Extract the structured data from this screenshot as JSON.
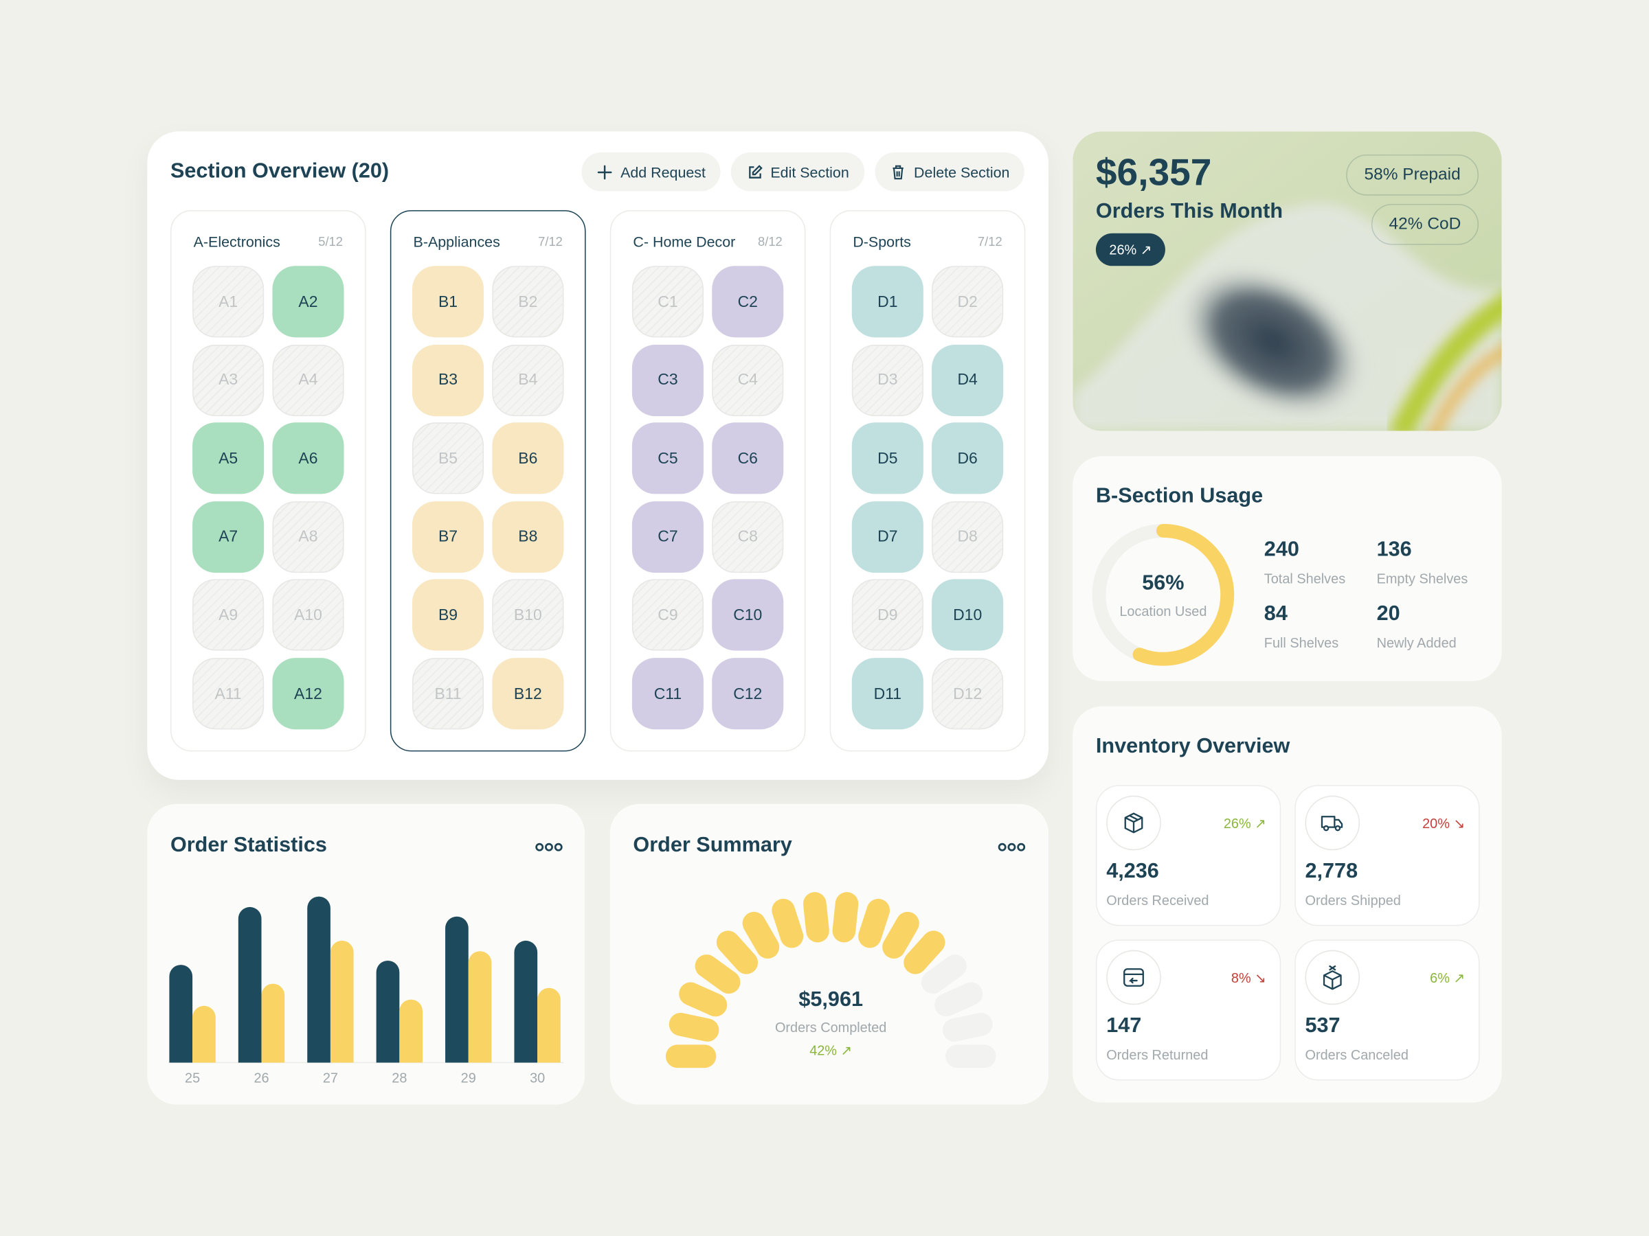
{
  "section_overview": {
    "title": "Section Overview (20)",
    "actions": [
      "Add Request",
      "Edit Section",
      "Delete Section"
    ],
    "selected_index": 1,
    "sections": [
      {
        "name": "A-Electronics",
        "count": "5/12",
        "color": "#a9dfbe",
        "slots": [
          {
            "label": "A1",
            "filled": false
          },
          {
            "label": "A2",
            "filled": true
          },
          {
            "label": "A3",
            "filled": false
          },
          {
            "label": "A4",
            "filled": false
          },
          {
            "label": "A5",
            "filled": true
          },
          {
            "label": "A6",
            "filled": true
          },
          {
            "label": "A7",
            "filled": true
          },
          {
            "label": "A8",
            "filled": false
          },
          {
            "label": "A9",
            "filled": false
          },
          {
            "label": "A10",
            "filled": false
          },
          {
            "label": "A11",
            "filled": false
          },
          {
            "label": "A12",
            "filled": true
          }
        ]
      },
      {
        "name": "B-Appliances",
        "count": "7/12",
        "color": "#f8e7c1",
        "slots": [
          {
            "label": "B1",
            "filled": true
          },
          {
            "label": "B2",
            "filled": false
          },
          {
            "label": "B3",
            "filled": true
          },
          {
            "label": "B4",
            "filled": false
          },
          {
            "label": "B5",
            "filled": false
          },
          {
            "label": "B6",
            "filled": true
          },
          {
            "label": "B7",
            "filled": true
          },
          {
            "label": "B8",
            "filled": true
          },
          {
            "label": "B9",
            "filled": true
          },
          {
            "label": "B10",
            "filled": false
          },
          {
            "label": "B11",
            "filled": false
          },
          {
            "label": "B12",
            "filled": true
          }
        ]
      },
      {
        "name": "C- Home Decor",
        "count": "8/12",
        "color": "#d2cde4",
        "slots": [
          {
            "label": "C1",
            "filled": false
          },
          {
            "label": "C2",
            "filled": true
          },
          {
            "label": "C3",
            "filled": true
          },
          {
            "label": "C4",
            "filled": false
          },
          {
            "label": "C5",
            "filled": true
          },
          {
            "label": "C6",
            "filled": true
          },
          {
            "label": "C7",
            "filled": true
          },
          {
            "label": "C8",
            "filled": false
          },
          {
            "label": "C9",
            "filled": false
          },
          {
            "label": "C10",
            "filled": true
          },
          {
            "label": "C11",
            "filled": true
          },
          {
            "label": "C12",
            "filled": true
          }
        ]
      },
      {
        "name": "D-Sports",
        "count": "7/12",
        "color": "#bfe0df",
        "slots": [
          {
            "label": "D1",
            "filled": true
          },
          {
            "label": "D2",
            "filled": false
          },
          {
            "label": "D3",
            "filled": false
          },
          {
            "label": "D4",
            "filled": true
          },
          {
            "label": "D5",
            "filled": true
          },
          {
            "label": "D6",
            "filled": true
          },
          {
            "label": "D7",
            "filled": true
          },
          {
            "label": "D8",
            "filled": false
          },
          {
            "label": "D9",
            "filled": false
          },
          {
            "label": "D10",
            "filled": true
          },
          {
            "label": "D11",
            "filled": true
          },
          {
            "label": "D12",
            "filled": false
          }
        ]
      }
    ]
  },
  "orders_month": {
    "amount": "$6,357",
    "label": "Orders This Month",
    "change": "26% ↗",
    "prepaid": "58% Prepaid",
    "cod": "42% CoD"
  },
  "section_usage": {
    "title": "B-Section Usage",
    "donut": {
      "type": "donut",
      "value": 56,
      "value_label": "56%",
      "caption": "Location Used",
      "color": "#f9d465",
      "track_color": "#f1f1ee"
    },
    "stats": [
      {
        "value": 240,
        "label": "Total Shelves"
      },
      {
        "value": 136,
        "label": "Empty Shelves"
      },
      {
        "value": 84,
        "label": "Full Shelves"
      },
      {
        "value": 20,
        "label": "Newly Added"
      }
    ]
  },
  "inventory_overview": {
    "title": "Inventory Overview",
    "items": [
      {
        "value": "4,236",
        "label": "Orders Received",
        "change": "26% ↗",
        "trend": "up",
        "icon": "box"
      },
      {
        "value": "2,778",
        "label": "Orders Shipped",
        "change": "20% ↘",
        "trend": "down",
        "icon": "truck"
      },
      {
        "value": "147",
        "label": "Orders Returned",
        "change": "8% ↘",
        "trend": "down",
        "icon": "return"
      },
      {
        "value": "537",
        "label": "Orders Canceled",
        "change": "6% ↗",
        "trend": "up",
        "icon": "cancel"
      }
    ]
  },
  "order_statistics": {
    "title": "Order Statistics",
    "chart": {
      "type": "bar",
      "categories": [
        "25",
        "26",
        "27",
        "28",
        "29",
        "30"
      ],
      "series": [
        {
          "color": "#1d4a5c",
          "values": [
            93,
            148,
            158,
            97,
            139,
            116
          ]
        },
        {
          "color": "#f9d465",
          "values": [
            54,
            75,
            116,
            60,
            106,
            71
          ]
        }
      ],
      "ylim": [
        0,
        170
      ]
    }
  },
  "order_summary": {
    "title": "Order Summary",
    "amount": "$5,961",
    "caption": "Orders Completed",
    "change": "42% ↗",
    "gauge": {
      "type": "gauge",
      "segments": 16,
      "filled": 12,
      "color": "#f9d465",
      "empty_color": "#f2f2f0"
    }
  }
}
